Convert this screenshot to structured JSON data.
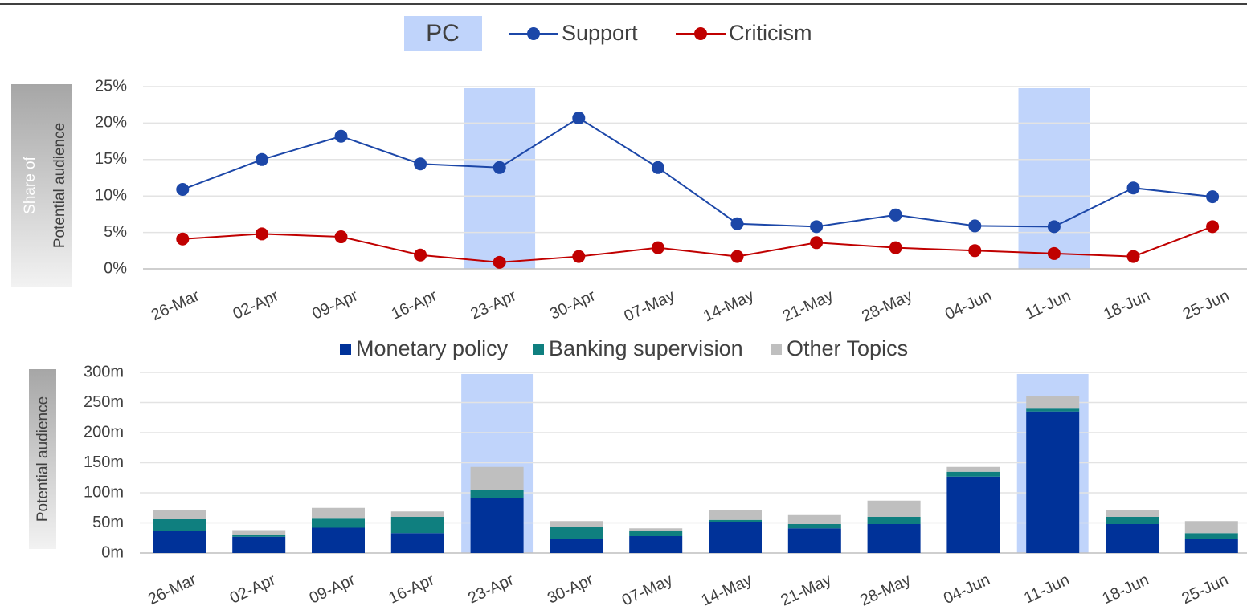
{
  "chart_data": [
    {
      "type": "line",
      "ylabel": [
        "Share of",
        "Potential audience"
      ],
      "categories": [
        "26-Mar",
        "02-Apr",
        "09-Apr",
        "16-Apr",
        "23-Apr",
        "30-Apr",
        "07-May",
        "14-May",
        "21-May",
        "28-May",
        "04-Jun",
        "11-Jun",
        "18-Jun",
        "25-Jun"
      ],
      "highlight": {
        "name": "PC",
        "color": "#c0d4fb",
        "categories": [
          "23-Apr",
          "11-Jun"
        ]
      },
      "series": [
        {
          "name": "Support",
          "color": "#1c47a8",
          "values": [
            10.9,
            15,
            18.2,
            14.4,
            13.9,
            20.7,
            13.9,
            6.2,
            5.8,
            7.4,
            5.9,
            5.8,
            11.1,
            9.9
          ]
        },
        {
          "name": "Criticism",
          "color": "#c00000",
          "values": [
            4.1,
            4.8,
            4.4,
            1.9,
            0.9,
            1.7,
            2.9,
            1.7,
            3.6,
            2.9,
            2.5,
            2.1,
            1.7,
            5.8
          ]
        }
      ],
      "ylim": [
        0,
        25
      ],
      "yticks": [
        {
          "value": 0,
          "label": "0%"
        },
        {
          "value": 5,
          "label": "5%"
        },
        {
          "value": 10,
          "label": "10%"
        },
        {
          "value": 15,
          "label": "15%"
        },
        {
          "value": 20,
          "label": "20%"
        },
        {
          "value": 25,
          "label": "25%"
        }
      ],
      "grid": true
    },
    {
      "type": "stacked_bar",
      "ylabel": [
        "Potential audience"
      ],
      "categories": [
        "26-Mar",
        "02-Apr",
        "09-Apr",
        "16-Apr",
        "23-Apr",
        "30-Apr",
        "07-May",
        "14-May",
        "21-May",
        "28-May",
        "04-Jun",
        "11-Jun",
        "18-Jun",
        "25-Jun"
      ],
      "highlight": {
        "color": "#c0d4fb",
        "categories": [
          "23-Apr",
          "11-Jun"
        ]
      },
      "series": [
        {
          "name": "Monetary policy",
          "color": "#003299",
          "values": [
            36,
            27,
            42,
            33,
            91,
            24,
            28,
            52,
            41,
            48,
            127,
            235,
            48,
            24
          ]
        },
        {
          "name": "Banking supervision",
          "color": "#0f7f7f",
          "values": [
            20,
            3,
            15,
            27,
            14,
            19,
            8,
            3,
            7,
            12,
            8,
            6,
            12,
            9
          ]
        },
        {
          "name": "Other Topics",
          "color": "#bfbfbf",
          "values": [
            16,
            8,
            18,
            9,
            38,
            10,
            5,
            17,
            15,
            27,
            8,
            20,
            12,
            20
          ]
        }
      ],
      "ylim": [
        0,
        300
      ],
      "yticks": [
        {
          "value": 0,
          "label": "0m"
        },
        {
          "value": 50,
          "label": "50m"
        },
        {
          "value": 100,
          "label": "100m"
        },
        {
          "value": 150,
          "label": "150m"
        },
        {
          "value": 200,
          "label": "200m"
        },
        {
          "value": 250,
          "label": "250m"
        },
        {
          "value": 300,
          "label": "300m"
        }
      ],
      "grid": true
    }
  ]
}
